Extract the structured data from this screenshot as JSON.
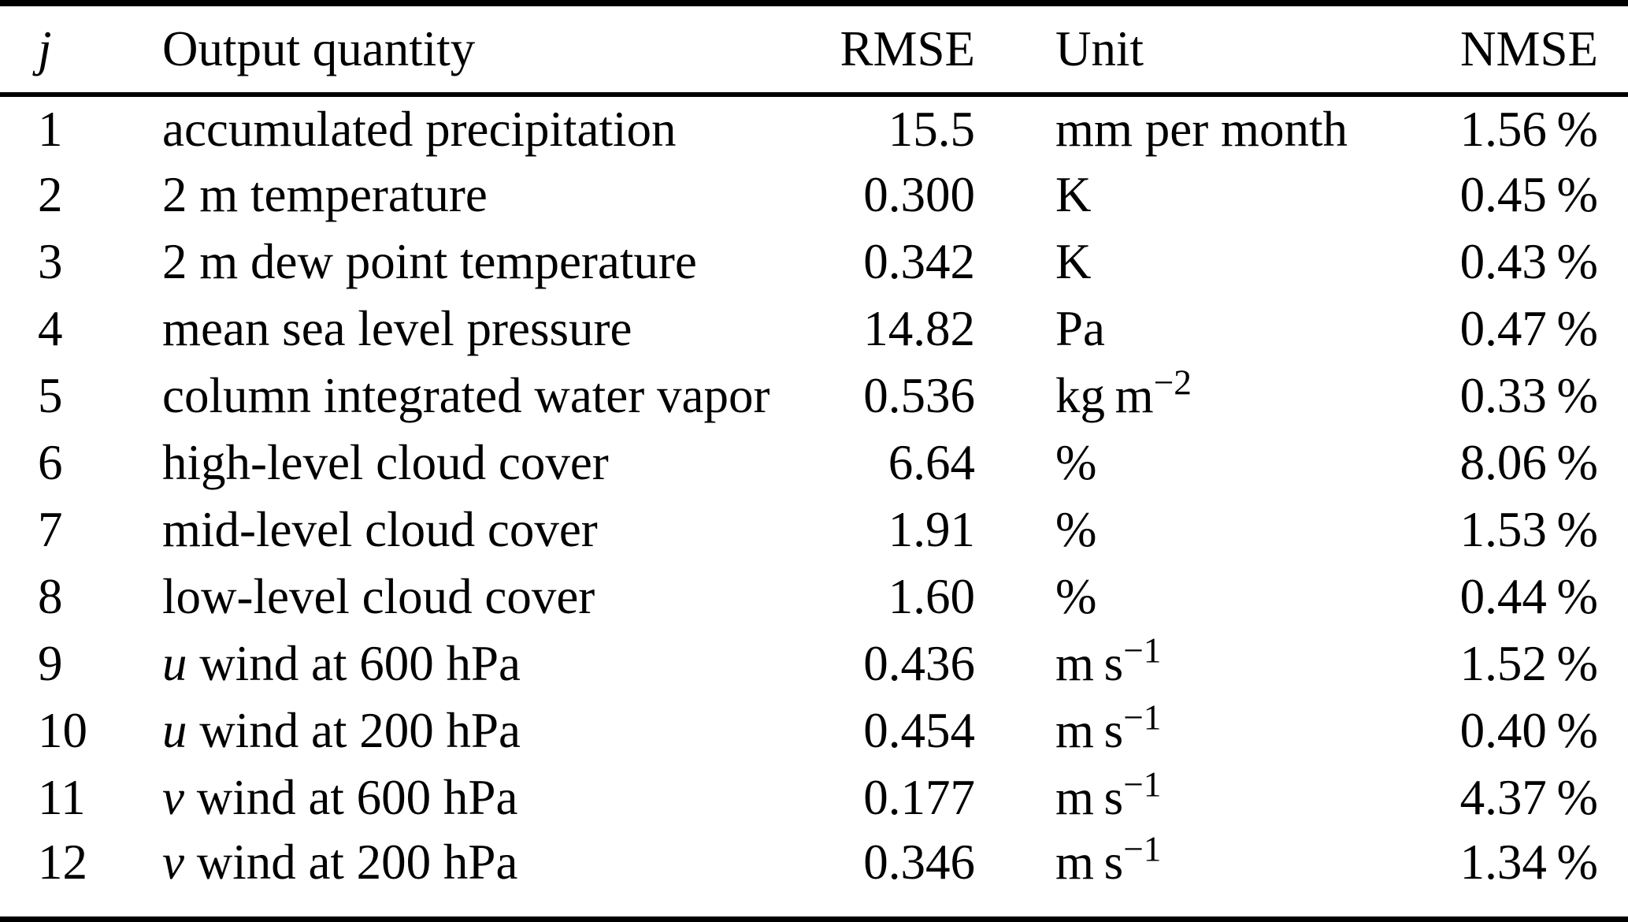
{
  "table": {
    "headers": {
      "j": "j",
      "output_quantity": "Output quantity",
      "rmse": "RMSE",
      "unit": "Unit",
      "nmse": "NMSE"
    },
    "rows": [
      {
        "j": "1",
        "qty_var": "",
        "qty": "accumulated precipitation",
        "rmse": "15.5",
        "unit": "mm per month",
        "unit_sup": "",
        "nmse": "1.56 %"
      },
      {
        "j": "2",
        "qty_var": "",
        "qty": "2 m temperature",
        "rmse": "0.300",
        "unit": "K",
        "unit_sup": "",
        "nmse": "0.45 %"
      },
      {
        "j": "3",
        "qty_var": "",
        "qty": "2 m dew point temperature",
        "rmse": "0.342",
        "unit": "K",
        "unit_sup": "",
        "nmse": "0.43 %"
      },
      {
        "j": "4",
        "qty_var": "",
        "qty": "mean sea level pressure",
        "rmse": "14.82",
        "unit": "Pa",
        "unit_sup": "",
        "nmse": "0.47 %"
      },
      {
        "j": "5",
        "qty_var": "",
        "qty": "column integrated water vapor",
        "rmse": "0.536",
        "unit": "kg m",
        "unit_sup": "−2",
        "nmse": "0.33 %"
      },
      {
        "j": "6",
        "qty_var": "",
        "qty": "high-level cloud cover",
        "rmse": "6.64",
        "unit": "%",
        "unit_sup": "",
        "nmse": "8.06 %"
      },
      {
        "j": "7",
        "qty_var": "",
        "qty": "mid-level cloud cover",
        "rmse": "1.91",
        "unit": "%",
        "unit_sup": "",
        "nmse": "1.53 %"
      },
      {
        "j": "8",
        "qty_var": "",
        "qty": "low-level cloud cover",
        "rmse": "1.60",
        "unit": "%",
        "unit_sup": "",
        "nmse": "0.44 %"
      },
      {
        "j": "9",
        "qty_var": "u",
        "qty": " wind at 600 hPa",
        "rmse": "0.436",
        "unit": "m s",
        "unit_sup": "−1",
        "nmse": "1.52 %"
      },
      {
        "j": "10",
        "qty_var": "u",
        "qty": " wind at 200 hPa",
        "rmse": "0.454",
        "unit": "m s",
        "unit_sup": "−1",
        "nmse": "0.40 %"
      },
      {
        "j": "11",
        "qty_var": "v",
        "qty": " wind at 600 hPa",
        "rmse": "0.177",
        "unit": "m s",
        "unit_sup": "−1",
        "nmse": "4.37 %"
      },
      {
        "j": "12",
        "qty_var": "v",
        "qty": " wind at 200 hPa",
        "rmse": "0.346",
        "unit": "m s",
        "unit_sup": "−1",
        "nmse": "1.34 %"
      }
    ],
    "rule_color": "#000000"
  }
}
